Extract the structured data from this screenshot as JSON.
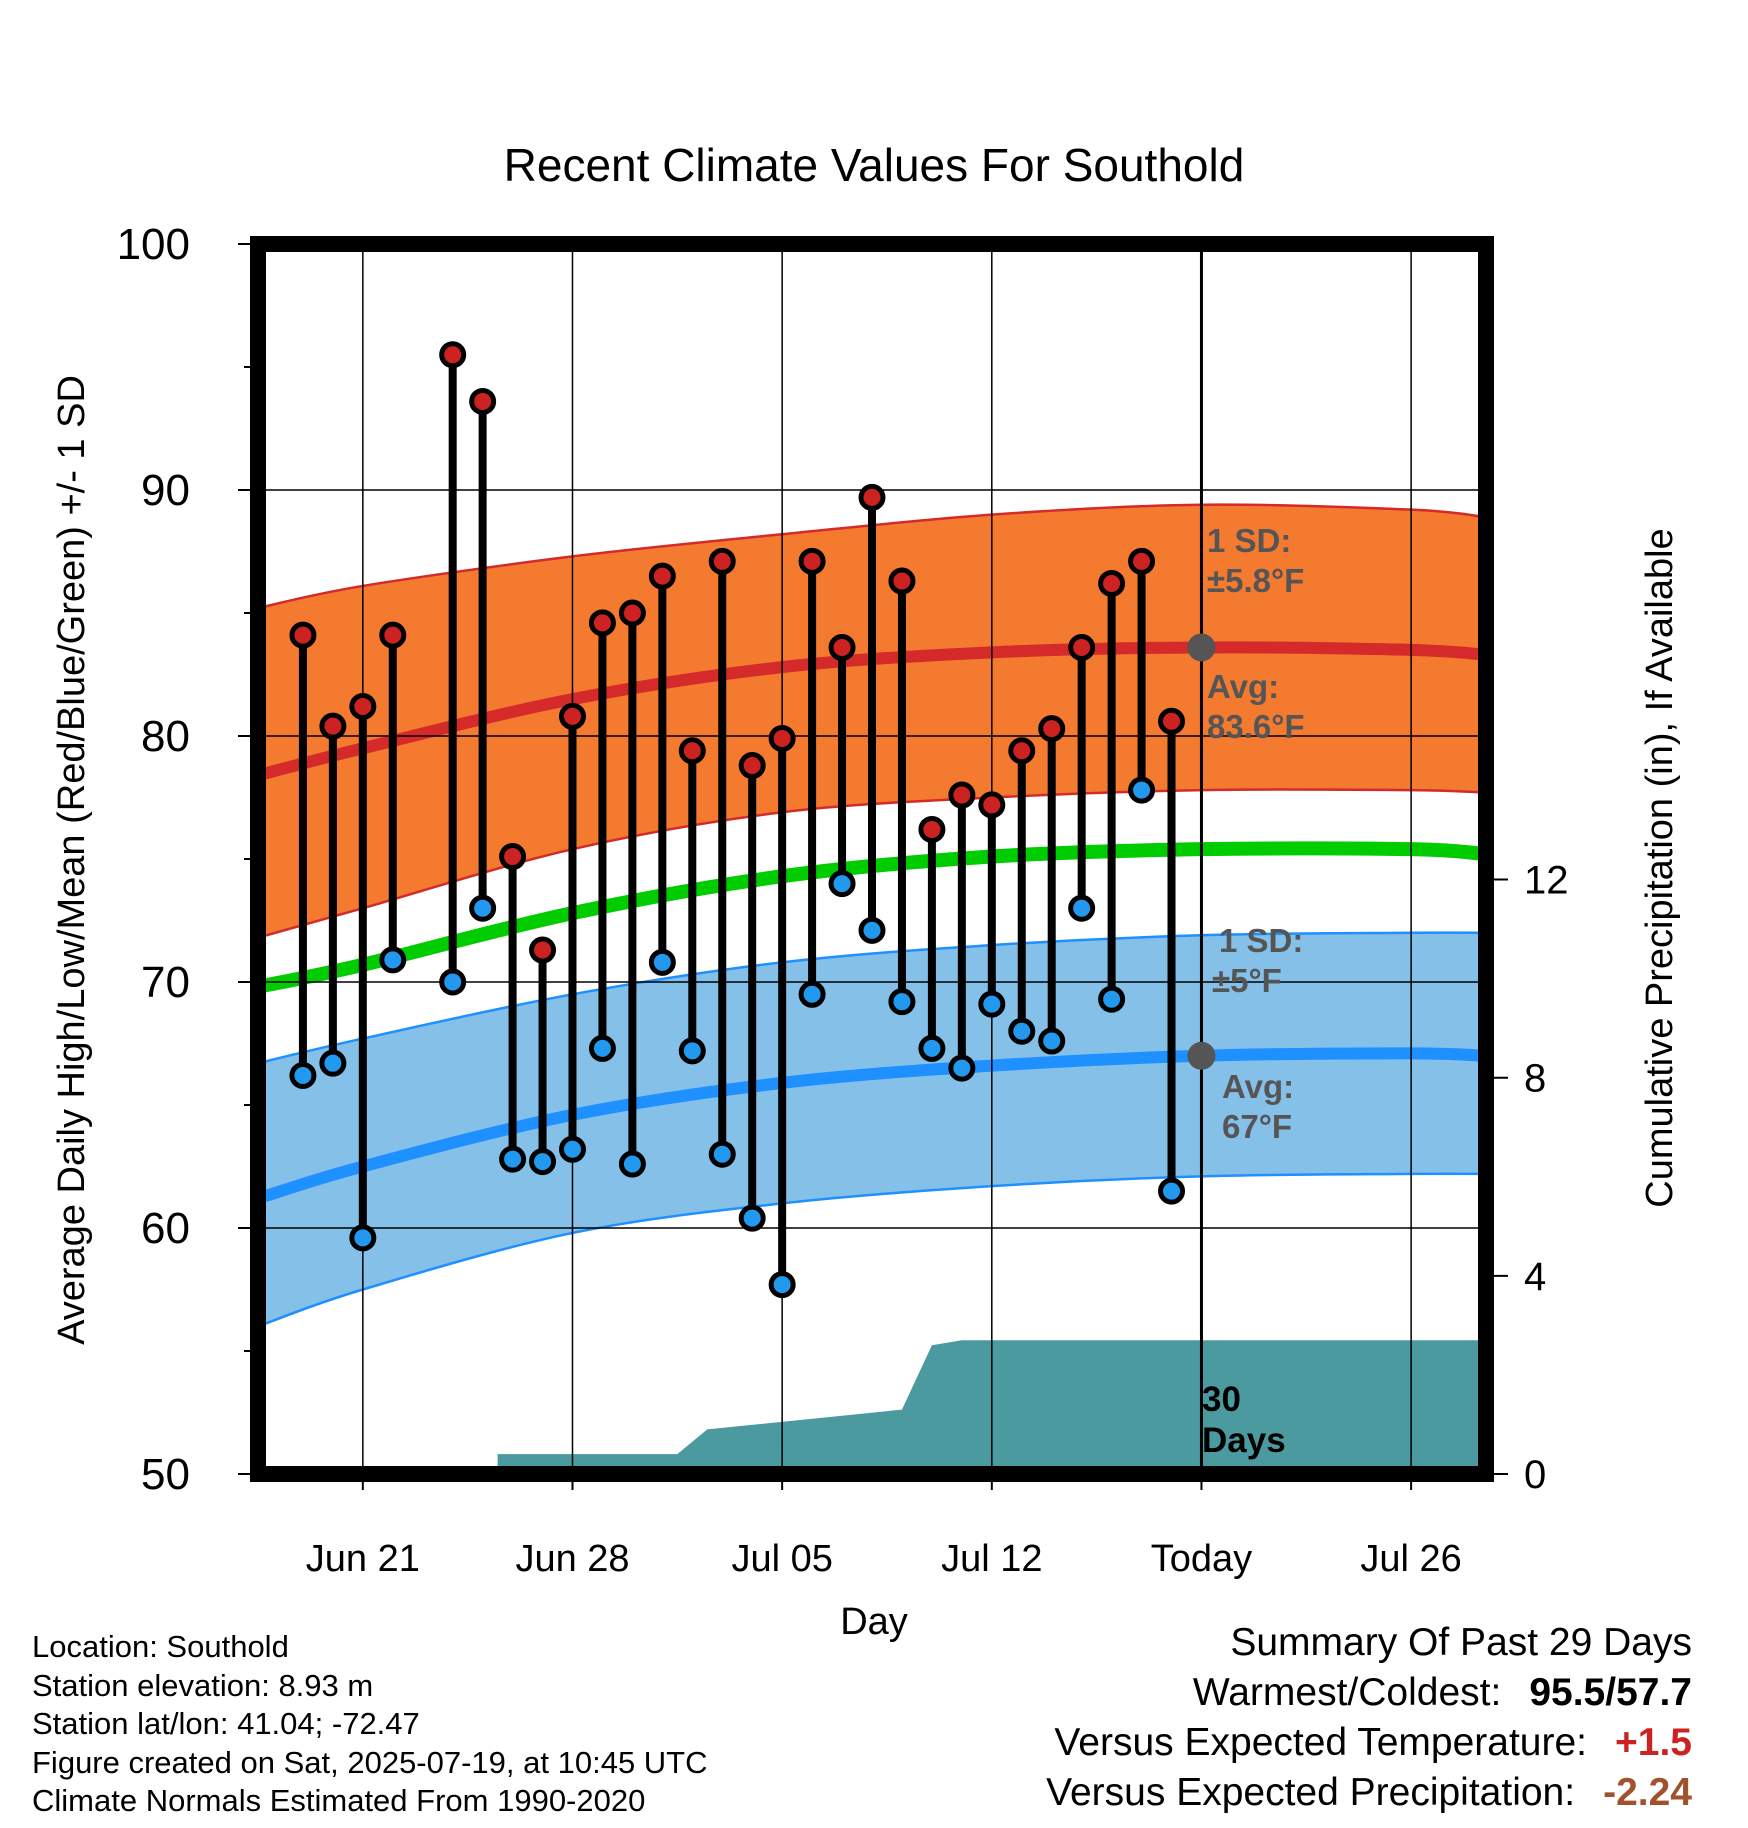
{
  "title": "Recent Climate Values For Southold",
  "xlabel": "Day",
  "ylabel_left": "Average Daily High/Low/Mean (Red/Blue/Green) +/- 1 SD",
  "ylabel_right": "Cumulative Precipitation (in), If Available",
  "annotations": {
    "high_sd_label": "1 SD:",
    "high_sd_value": "±5.8°F",
    "high_avg_label": "Avg:",
    "high_avg_value": "83.6°F",
    "low_sd_label": "1 SD:",
    "low_sd_value": "±5°F",
    "low_avg_label": "Avg:",
    "low_avg_value": "67°F",
    "days_label_1": "30",
    "days_label_2": "Days"
  },
  "info": {
    "location": "Location: Southold",
    "elevation": "Station elevation: 8.93 m",
    "latlon": "Station lat/lon: 41.04; -72.47",
    "created": "Figure created on Sat, 2025-07-19, at 10:45 UTC",
    "normals": "Climate Normals Estimated From 1990-2020"
  },
  "summary": {
    "heading": "Summary Of Past 29 Days",
    "warmest_coldest_label": "Warmest/Coldest:",
    "warmest_coldest_value": "95.5/57.7",
    "temp_label": "Versus Expected Temperature:",
    "temp_value": "+1.5",
    "precip_label": "Versus Expected Precipitation:",
    "precip_value": "-2.24"
  },
  "colors": {
    "high_band": "#f47a30",
    "high_avg": "#d42a2a",
    "low_band": "#85c0e8",
    "low_avg": "#1e90ff",
    "mean_avg": "#00cc00",
    "precip": "#4a9aa0",
    "high_point": "#cc2222",
    "low_point": "#2299ee",
    "today_marker": "#555555",
    "annotation_text": "#555555",
    "temp_value": "#cc2222",
    "precip_value": "#a0522d"
  },
  "chart_data": {
    "type": "line",
    "x_day_range": [
      -31.5,
      9.5
    ],
    "x_ticks": [
      {
        "day": -28,
        "label": "Jun 21"
      },
      {
        "day": -21,
        "label": "Jun 28"
      },
      {
        "day": -14,
        "label": "Jul 05"
      },
      {
        "day": -7,
        "label": "Jul 12"
      },
      {
        "day": 0,
        "label": "Today"
      },
      {
        "day": 7,
        "label": "Jul 26"
      }
    ],
    "ylim": [
      50,
      100
    ],
    "y_ticks": [
      50,
      60,
      70,
      80,
      90,
      100
    ],
    "y2lim": [
      0,
      24.83
    ],
    "y2_ticks": [
      0,
      4,
      8,
      12
    ],
    "normals": {
      "days": [
        -31.5,
        -28,
        -21,
        -14,
        -7,
        0,
        7,
        9.5
      ],
      "high_avg": [
        78.4,
        79.5,
        81.5,
        82.8,
        83.4,
        83.6,
        83.5,
        83.3
      ],
      "high_upper": [
        85.2,
        86.1,
        87.3,
        88.2,
        89.0,
        89.4,
        89.2,
        88.9
      ],
      "high_lower": [
        71.8,
        73.0,
        75.4,
        76.9,
        77.5,
        77.8,
        77.8,
        77.7
      ],
      "mean_avg": [
        69.8,
        70.7,
        72.8,
        74.3,
        75.1,
        75.4,
        75.4,
        75.2
      ],
      "low_avg": [
        61.2,
        62.5,
        64.6,
        65.9,
        66.6,
        67.0,
        67.1,
        67.0
      ],
      "low_upper": [
        66.7,
        67.7,
        69.5,
        70.8,
        71.5,
        71.9,
        72.0,
        72.0
      ],
      "low_lower": [
        56.0,
        57.5,
        59.8,
        61.0,
        61.7,
        62.1,
        62.2,
        62.2
      ]
    },
    "observed": {
      "days": [
        -30,
        -29,
        -28,
        -27,
        -26,
        -25,
        -24,
        -23,
        -22,
        -21,
        -20,
        -19,
        -18,
        -17,
        -16,
        -15,
        -14,
        -13,
        -12,
        -11,
        -10,
        -9,
        -8,
        -7,
        -6,
        -5,
        -4,
        -3,
        -2,
        -1
      ],
      "high": [
        84.1,
        80.4,
        81.2,
        84.1,
        null,
        95.5,
        93.6,
        75.1,
        71.3,
        80.8,
        84.6,
        85.0,
        86.5,
        79.4,
        87.1,
        78.8,
        79.9,
        87.1,
        83.6,
        89.7,
        86.3,
        76.2,
        77.6,
        77.2,
        79.4,
        80.3,
        83.6,
        86.2,
        87.1,
        80.6
      ],
      "low": [
        66.2,
        66.7,
        59.6,
        70.9,
        null,
        70.0,
        73.0,
        62.8,
        62.7,
        63.2,
        67.3,
        62.6,
        70.8,
        67.2,
        63.0,
        60.4,
        57.7,
        69.5,
        74.0,
        72.1,
        69.2,
        67.3,
        66.5,
        69.1,
        68.0,
        67.6,
        73.0,
        69.3,
        77.8,
        61.5
      ]
    },
    "precipitation": {
      "days": [
        -31.5,
        -23.5,
        -23.5,
        -17.5,
        -16.5,
        -10,
        -9,
        -8,
        -5,
        9.5
      ],
      "cumulative_in": [
        0,
        0,
        0.4,
        0.4,
        0.9,
        1.3,
        2.6,
        2.7,
        2.7,
        2.7
      ]
    },
    "today_markers": {
      "high_avg": 83.6,
      "low_avg": 67.0
    }
  }
}
